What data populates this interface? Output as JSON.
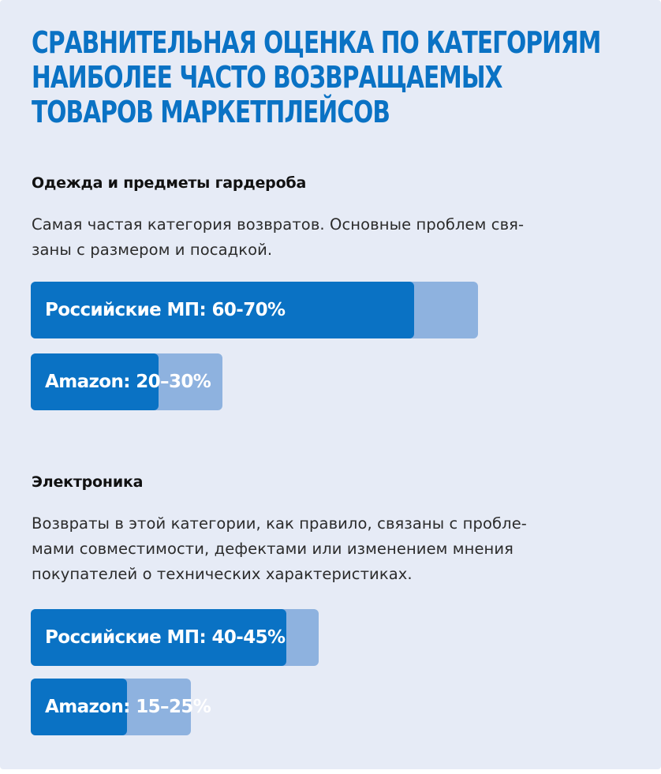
{
  "page": {
    "title_lines": [
      "СРАВНИТЕЛЬНАЯ ОЦЕНКА ПО КАТЕГОРИЯМ",
      "НАИБОЛЕЕ ЧАСТО ВОЗВРАЩАЕМЫХ",
      "ТОВАРОВ МАРКЕТПЛЕЙСОВ"
    ],
    "categories": [
      {
        "heading": "Одежда и предметы гардероба",
        "description_lines": [
          "Самая частая категория возвратов. Основные проблем свя-",
          "заны с размером и посадкой."
        ],
        "bars": [
          {
            "label": "Российские МП: 60-70%",
            "min": 60,
            "max": 70
          },
          {
            "label": "Amazon: 20–30%",
            "min": 20,
            "max": 30
          }
        ]
      },
      {
        "heading": "Электроника",
        "description_lines": [
          "Возвраты в этой категории, как правило, связаны с пробле-",
          "мами совместимости, дефектами или изменением мнения",
          "покупателей о технических характеристиках."
        ],
        "bars": [
          {
            "label": "Российские МП: 40-45%",
            "min": 40,
            "max": 45
          },
          {
            "label": "Amazon: 15–25%",
            "min": 15,
            "max": 25
          }
        ]
      }
    ]
  },
  "colors": {
    "background": "#e6ebf6",
    "accent": "#0a72c4",
    "range": "#8eb2df",
    "heading_text": "#111111",
    "body_text": "#2b2b2b"
  },
  "chart_data": [
    {
      "type": "bar",
      "title": "Одежда и предметы гардероба",
      "categories": [
        "Российские МП",
        "Amazon"
      ],
      "series": [
        {
          "values": [
            60,
            20
          ]
        },
        {
          "values": [
            70,
            30
          ]
        }
      ],
      "labels": [
        "Российские МП: 60-70%",
        "Amazon: 20–30%"
      ],
      "xlim": [
        0,
        100
      ]
    },
    {
      "type": "bar",
      "title": "Электроника",
      "categories": [
        "Российские МП",
        "Amazon"
      ],
      "series": [
        {
          "values": [
            40,
            15
          ]
        },
        {
          "values": [
            45,
            25
          ]
        }
      ],
      "labels": [
        "Российские МП: 40-45%",
        "Amazon: 15–25%"
      ],
      "xlim": [
        0,
        100
      ]
    }
  ]
}
